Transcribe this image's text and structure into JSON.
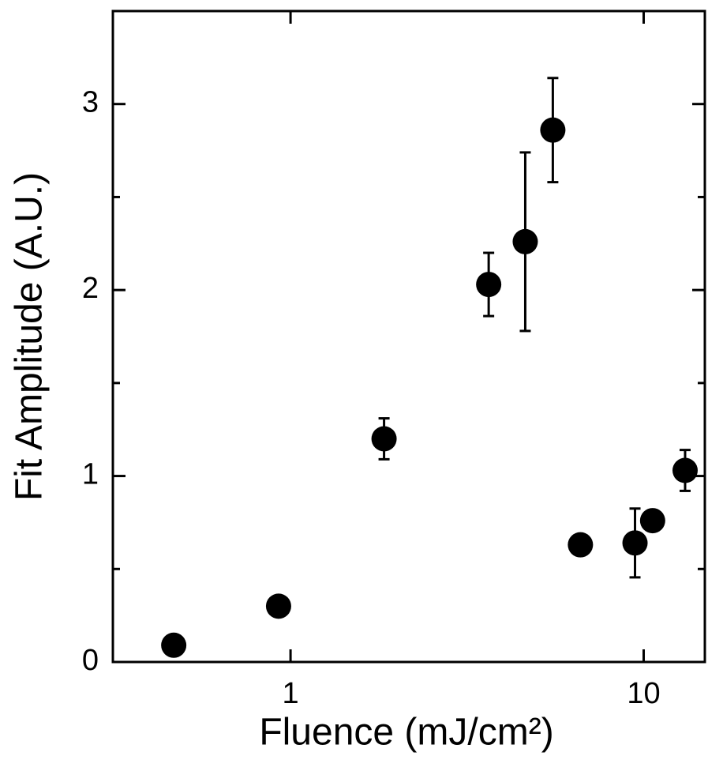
{
  "chart_data": {
    "type": "scatter",
    "x_label": "Fluence (mJ/cm²)",
    "y_label": "Fit Amplitude (A.U.)",
    "x_scale": "log",
    "xlim": [
      0.314,
      14.9
    ],
    "xticks": [
      1,
      10
    ],
    "ylim": [
      0,
      3.5
    ],
    "yticks": [
      0,
      1,
      2,
      3
    ],
    "yminorticks": [
      0.5,
      1.5,
      2.5
    ],
    "color": "#000000",
    "x": [
      0.467,
      0.925,
      1.84,
      3.64,
      4.62,
      5.53,
      6.62,
      9.45,
      10.6,
      13.1
    ],
    "values": [
      0.09,
      0.3,
      1.2,
      2.03,
      2.26,
      2.86,
      0.63,
      0.64,
      0.76,
      1.03
    ],
    "errors": [
      null,
      null,
      0.11,
      0.17,
      0.48,
      0.28,
      null,
      0.185,
      null,
      0.11
    ]
  }
}
